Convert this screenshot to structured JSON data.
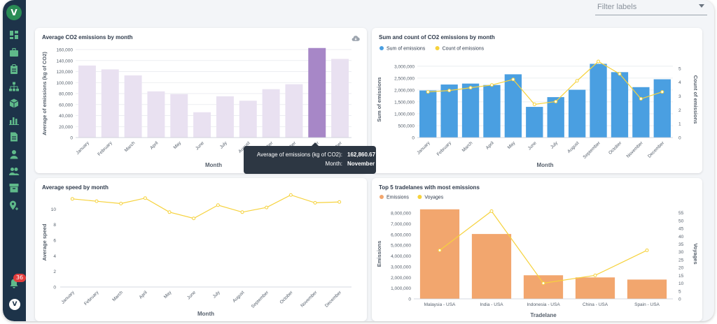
{
  "sidebar": {
    "logo_text": "V",
    "items": [
      {
        "icon": "dashboard-icon"
      },
      {
        "icon": "briefcase-icon"
      },
      {
        "icon": "clipboard-icon"
      },
      {
        "icon": "sitemap-icon"
      },
      {
        "icon": "cube-icon"
      },
      {
        "icon": "bar-chart-icon"
      },
      {
        "icon": "document-icon"
      },
      {
        "icon": "user-icon"
      },
      {
        "icon": "users-icon"
      },
      {
        "icon": "archive-icon"
      },
      {
        "icon": "map-pin-icon"
      }
    ],
    "notifications_count": "36",
    "bottom_logo_text": "V"
  },
  "filter": {
    "placeholder": "Filter labels"
  },
  "colors": {
    "purple_light": "#e9e1f1",
    "purple_highlight": "#a787c7",
    "blue": "#4a9fe1",
    "yellow": "#f6d23c",
    "orange": "#f2a66e",
    "sidebar": "#1d3349",
    "green": "#5fb98a"
  },
  "months": [
    "January",
    "February",
    "March",
    "April",
    "May",
    "June",
    "July",
    "August",
    "September",
    "October",
    "November",
    "December"
  ],
  "tooltip": {
    "label1": "Average of emissions (kg of CO2):",
    "value1": "162,860.67",
    "label2": "Month:",
    "value2": "November"
  },
  "chart_data": [
    {
      "type": "bar",
      "title": "Average CO2 emissions by month",
      "categories": [
        "January",
        "February",
        "March",
        "April",
        "May",
        "June",
        "July",
        "August",
        "September",
        "October",
        "November",
        "December"
      ],
      "values": [
        131000,
        124000,
        113000,
        84000,
        79000,
        46000,
        75000,
        67000,
        88000,
        97000,
        162860.67,
        143000
      ],
      "highlight_index": 10,
      "xlabel": "Month",
      "ylabel": "Average of emissions (kg of CO2)",
      "yticks": [
        "0",
        "20,000",
        "40,000",
        "60,000",
        "80,000",
        "100,000",
        "120,000",
        "140,000",
        "160,000"
      ],
      "ylim": [
        0,
        160000
      ]
    },
    {
      "type": "bar",
      "title": "Sum and count of CO2 emissions by month",
      "categories": [
        "January",
        "February",
        "March",
        "April",
        "May",
        "June",
        "July",
        "August",
        "September",
        "October",
        "November",
        "December"
      ],
      "series": [
        {
          "name": "Sum of emissions",
          "type": "bar",
          "axis": "left",
          "values": [
            1980000,
            2230000,
            2270000,
            2210000,
            2660000,
            1290000,
            1700000,
            2010000,
            3100000,
            2750000,
            2120000,
            2450000
          ]
        },
        {
          "name": "Count of emissions",
          "type": "line",
          "axis": "right",
          "values": [
            3.3,
            3.4,
            3.6,
            3.8,
            4.2,
            2.4,
            2.6,
            4.1,
            5.5,
            4.6,
            2.8,
            3.3
          ]
        }
      ],
      "xlabel": "Month",
      "ylabel": "Sum of emissions",
      "ylabel_right": "Count of emissions",
      "yticks": [
        "0",
        "500,000",
        "1,000,000",
        "1,500,000",
        "2,000,000",
        "2,500,000",
        "3,000,000"
      ],
      "yticks_right": [
        "0",
        "1",
        "2",
        "3",
        "4",
        "5"
      ],
      "ylim": [
        0,
        3200000
      ],
      "ylim_right": [
        0,
        5.5
      ],
      "legend": "top-left"
    },
    {
      "type": "line",
      "title": "Average speed by month",
      "categories": [
        "January",
        "February",
        "March",
        "April",
        "May",
        "June",
        "July",
        "August",
        "September",
        "October",
        "November",
        "December"
      ],
      "values": [
        11.3,
        11.0,
        10.7,
        11.4,
        9.6,
        8.8,
        10.5,
        9.6,
        10.2,
        11.8,
        10.8,
        10.9
      ],
      "xlabel": "Month",
      "ylabel": "Average speed",
      "yticks": [
        "0",
        "2",
        "4",
        "6",
        "8",
        "10"
      ],
      "ylim": [
        0,
        12
      ]
    },
    {
      "type": "bar",
      "title": "Top 5 tradelanes with most emissions",
      "categories": [
        "Malaysia - USA",
        "India - USA",
        "Indonesia - USA",
        "China - USA",
        "Spain - USA"
      ],
      "series": [
        {
          "name": "Emissions",
          "type": "bar",
          "axis": "left",
          "values": [
            8350000,
            6050000,
            2200000,
            2000000,
            1800000
          ]
        },
        {
          "name": "Voyages",
          "type": "line",
          "axis": "right",
          "values": [
            31,
            56,
            10,
            15,
            31
          ]
        }
      ],
      "xlabel": "Tradelane",
      "ylabel": "Emissions",
      "ylabel_right": "Voyages",
      "yticks": [
        "0",
        "1,000,000",
        "2,000,000",
        "3,000,000",
        "4,000,000",
        "5,000,000",
        "6,000,000",
        "7,000,000",
        "8,000,000"
      ],
      "yticks_right": [
        "0",
        "5",
        "10",
        "15",
        "20",
        "25",
        "30",
        "35",
        "40",
        "45",
        "50",
        "55"
      ],
      "ylim": [
        0,
        8000000
      ],
      "ylim_right": [
        0,
        55
      ],
      "legend": "top-left"
    }
  ]
}
